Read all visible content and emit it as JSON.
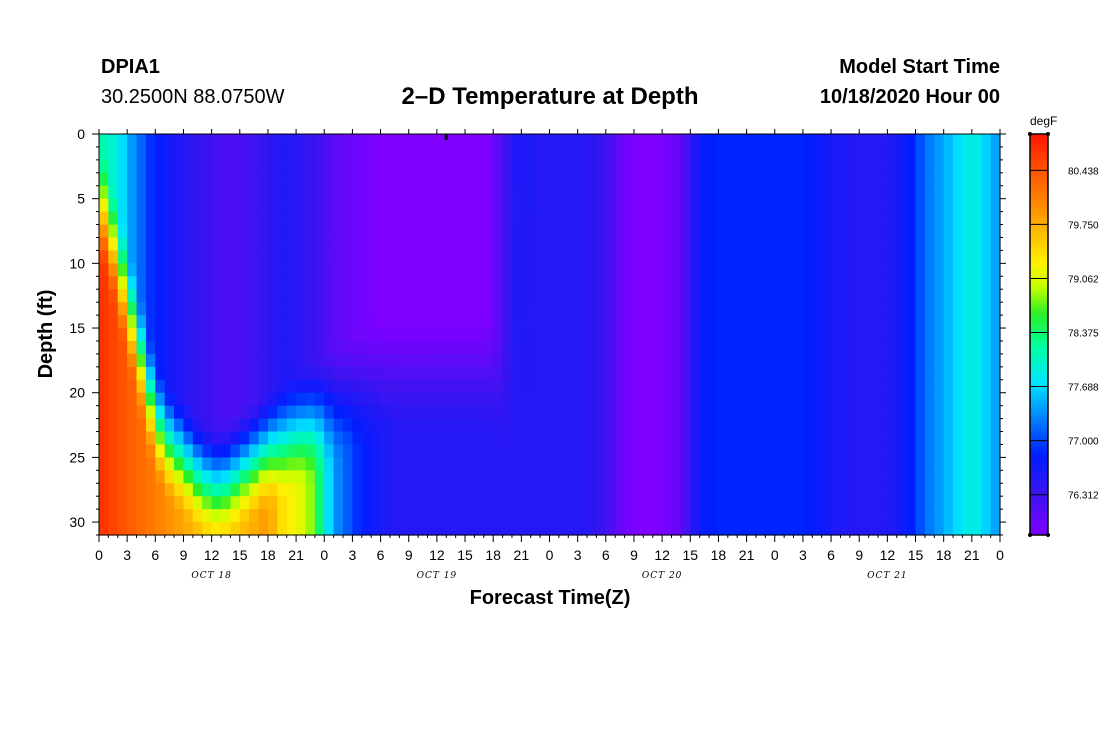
{
  "header": {
    "station_id": "DPIA1",
    "coordinates": "30.2500N 88.0750W",
    "title": "2–D Temperature at Depth",
    "model_start_label": "Model Start Time",
    "model_start_value": "10/18/2020 Hour 00"
  },
  "chart_data": {
    "type": "heatmap",
    "title": "2–D Temperature at Depth",
    "xlabel": "Forecast Time(Z)",
    "ylabel": "Depth (ft)",
    "x_hours_range": [
      0,
      96
    ],
    "ylim": [
      0,
      31
    ],
    "y_inverted": true,
    "x_tick_labels": [
      "0",
      "3",
      "6",
      "9",
      "12",
      "15",
      "18",
      "21",
      "0",
      "3",
      "6",
      "9",
      "12",
      "15",
      "18",
      "21",
      "0",
      "3",
      "6",
      "9",
      "12",
      "15",
      "18",
      "21",
      "0",
      "3",
      "6",
      "9",
      "12",
      "15",
      "18",
      "21",
      "0"
    ],
    "y_tick_labels": [
      "0",
      "5",
      "10",
      "15",
      "20",
      "25",
      "30"
    ],
    "y_tick_values": [
      0,
      5,
      10,
      15,
      20,
      25,
      30
    ],
    "day_labels": [
      "OCT 18",
      "OCT 19",
      "OCT 20",
      "OCT 21"
    ],
    "colorbar": {
      "unit": "degF",
      "min": 75.8,
      "max": 80.9,
      "labels": [
        "80.438",
        "79.750",
        "79.062",
        "78.375",
        "77.688",
        "77.000",
        "76.312"
      ],
      "label_values": [
        80.438,
        79.75,
        79.062,
        78.375,
        77.688,
        77.0,
        76.312
      ]
    },
    "surface_temperature_hourly": [
      78.2,
      78.0,
      77.9,
      77.5,
      77.3,
      77.0,
      76.8,
      76.7,
      76.6,
      76.5,
      76.4,
      76.35,
      76.3,
      76.2,
      76.2,
      76.2,
      76.25,
      76.3,
      76.4,
      76.5,
      76.55,
      76.5,
      76.4,
      76.3,
      76.2,
      76.1,
      76.0,
      75.95,
      75.9,
      75.85,
      75.8,
      75.8,
      75.8,
      75.8,
      75.8,
      75.8,
      75.8,
      75.8,
      75.8,
      75.8,
      75.8,
      75.8,
      75.9,
      76.2,
      76.5,
      76.6,
      76.55,
      76.5,
      76.5,
      76.5,
      76.5,
      76.5,
      76.5,
      76.4,
      76.3,
      76.1,
      75.9,
      75.85,
      75.8,
      75.8,
      75.85,
      75.9,
      76.0,
      76.4,
      76.7,
      76.8,
      76.85,
      76.85,
      76.85,
      76.85,
      76.85,
      76.85,
      76.85,
      76.85,
      76.85,
      76.85,
      76.8,
      76.7,
      76.6,
      76.55,
      76.55,
      76.5,
      76.5,
      76.5,
      76.55,
      76.6,
      76.7,
      76.9,
      77.2,
      77.3,
      77.5,
      77.6,
      77.8,
      77.9,
      77.8,
      77.5,
      77.4
    ],
    "max_temperature_hourly": [
      80.7,
      80.6,
      80.5,
      80.4,
      80.3,
      80.2,
      80.1,
      80.0,
      79.9,
      79.8,
      79.7,
      79.6,
      79.5,
      79.5,
      79.5,
      79.6,
      79.7,
      79.8,
      79.9,
      79.5,
      79.3,
      79.2,
      79.0,
      78.7,
      78.0,
      77.4,
      77.2,
      77.0,
      76.8,
      76.7,
      76.6,
      76.55,
      76.5,
      76.5,
      76.5,
      76.5,
      76.5,
      76.5,
      76.5,
      76.5,
      76.5,
      76.5,
      76.5,
      76.5,
      76.5,
      76.5,
      76.5,
      76.5,
      76.5,
      76.5,
      76.5,
      76.5,
      76.5,
      76.4,
      76.3,
      76.1,
      75.9,
      75.85,
      75.8,
      75.8,
      75.85,
      75.9,
      76.0,
      76.4,
      76.7,
      76.8,
      76.85,
      76.85,
      76.85,
      76.85,
      76.85,
      76.85,
      76.85,
      76.85,
      76.85,
      76.85,
      76.8,
      76.7,
      76.6,
      76.55,
      76.55,
      76.5,
      76.5,
      76.5,
      76.55,
      76.6,
      76.7,
      76.9,
      77.2,
      77.3,
      77.5,
      77.6,
      77.8,
      77.9,
      77.8,
      77.5,
      77.4
    ],
    "thermocline_depth_hourly": [
      5,
      7,
      10,
      13,
      16,
      19,
      22,
      23.5,
      24.5,
      25,
      26,
      26.5,
      27,
      27,
      26.5,
      26,
      25.5,
      25,
      24.5,
      24,
      23.5,
      23,
      22.5,
      22,
      21.5,
      21,
      20.5,
      20,
      19.5,
      19,
      18.8,
      18.6,
      18.5,
      18.5,
      18.5,
      18.5,
      18.5,
      18.5,
      18.5,
      18.5,
      18.5,
      18.5,
      19,
      20,
      21,
      22,
      23,
      24,
      25,
      25,
      25,
      25,
      25,
      25,
      25,
      25,
      25,
      25,
      25,
      25,
      25,
      25,
      25,
      25,
      25,
      25,
      25,
      25,
      25,
      25,
      25,
      25,
      25,
      25,
      25,
      25,
      25,
      25,
      25,
      25,
      25,
      25,
      25,
      25,
      25,
      25,
      25,
      25,
      25,
      25,
      25,
      25,
      25,
      25,
      25,
      25,
      25
    ]
  }
}
